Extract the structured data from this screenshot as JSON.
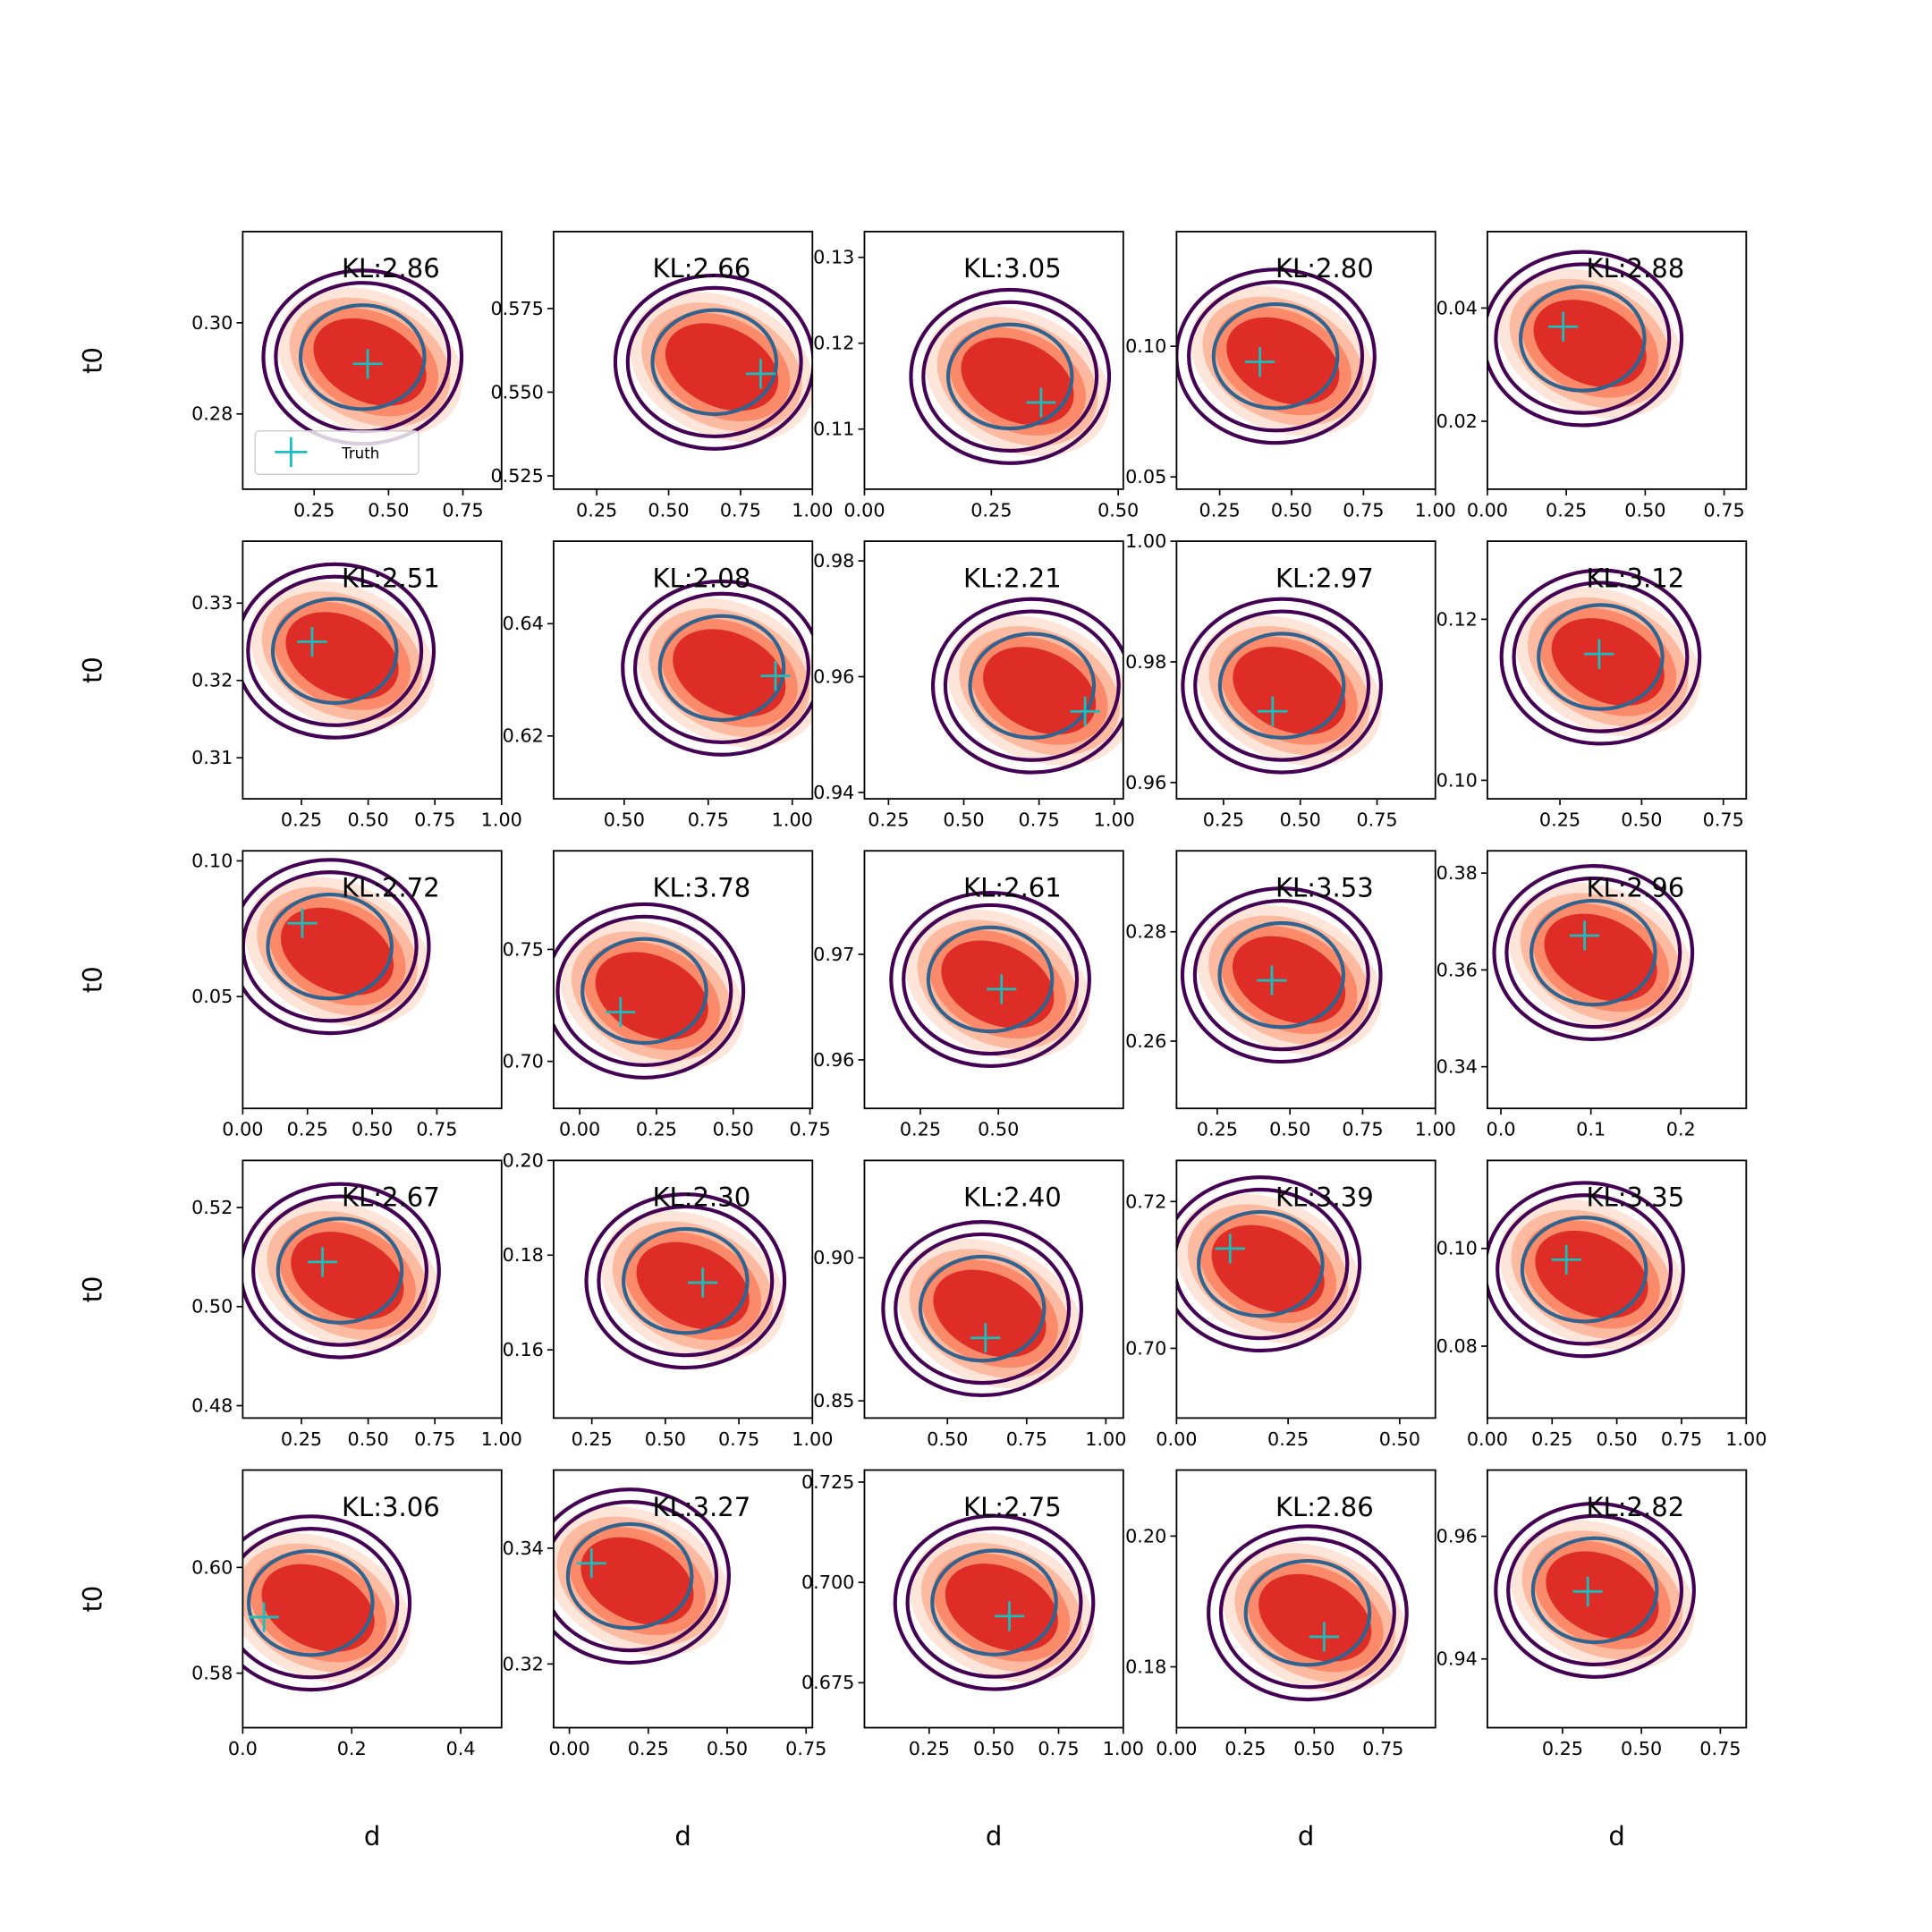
{
  "chart_data": [
    {
      "type": "scatter",
      "title": "KL:2.86",
      "ylabel": "t0",
      "legend": "lower left",
      "xlim": [
        0.01,
        0.88
      ],
      "xticks": [
        0.25,
        {
          "value": 0.5,
          "label": "0.50"
        },
        0.75
      ],
      "ylim": [
        0.2635,
        0.32
      ],
      "yticks": [
        0.28,
        {
          "value": 0.3,
          "label": "0.30"
        }
      ],
      "series": [
        {
          "name": "Truth",
          "color": "#17bfbf",
          "x": [
            0.43
          ],
          "values": [
            0.291
          ]
        }
      ]
    },
    {
      "type": "scatter",
      "title": "KL:2.66",
      "xlim": [
        0.1,
        1.0
      ],
      "xticks": [
        0.25,
        {
          "value": 0.5,
          "label": "0.50"
        },
        0.75,
        {
          "value": 1,
          "label": "1.00"
        }
      ],
      "ylim": [
        0.521,
        0.598
      ],
      "yticks": [
        0.525,
        {
          "value": 0.55,
          "label": "0.550"
        },
        0.575
      ],
      "series": [
        {
          "color": "#17bfbf",
          "x": [
            0.82
          ],
          "values": [
            0.5555
          ]
        }
      ]
    },
    {
      "type": "scatter",
      "title": "KL:3.05",
      "xlim": [
        0,
        0.51
      ],
      "xticks": [
        {
          "value": 0,
          "label": "0.00"
        },
        0.25,
        {
          "value": 0.5,
          "label": "0.50"
        }
      ],
      "ylim": [
        0.103,
        0.133
      ],
      "yticks": [
        0.11,
        0.12,
        0.13
      ],
      "series": [
        {
          "color": "#17bfbf",
          "x": [
            0.348
          ],
          "values": [
            0.1131
          ]
        }
      ]
    },
    {
      "type": "scatter",
      "title": "KL:2.80",
      "xlim": [
        0.1,
        1.0
      ],
      "xticks": [
        0.25,
        {
          "value": 0.5,
          "label": "0.50"
        },
        0.75,
        {
          "value": 1,
          "label": "1.00"
        }
      ],
      "ylim": [
        0.0453,
        0.1439
      ],
      "yticks": [
        0.05,
        {
          "value": 0.1,
          "label": "0.10"
        }
      ],
      "series": [
        {
          "color": "#17bfbf",
          "x": [
            0.39
          ],
          "values": [
            0.094
          ]
        }
      ]
    },
    {
      "type": "scatter",
      "title": "KL:2.88",
      "xlim": [
        0,
        0.82
      ],
      "xticks": [
        {
          "value": 0,
          "label": "0.00"
        },
        0.25,
        {
          "value": 0.5,
          "label": "0.50"
        },
        0.75
      ],
      "ylim": [
        0.008,
        0.0535
      ],
      "yticks": [
        0.02,
        0.04
      ],
      "series": [
        {
          "color": "#17bfbf",
          "x": [
            0.24
          ],
          "values": [
            0.0367
          ]
        }
      ]
    },
    {
      "type": "scatter",
      "title": "KL:2.51",
      "ylabel": "t0",
      "xlim": [
        0.03,
        1.0
      ],
      "xticks": [
        0.25,
        {
          "value": 0.5,
          "label": "0.50"
        },
        0.75,
        {
          "value": 1,
          "label": "1.00"
        }
      ],
      "ylim": [
        0.3047,
        0.338
      ],
      "yticks": [
        0.31,
        0.32,
        0.33
      ],
      "series": [
        {
          "color": "#17bfbf",
          "x": [
            0.29
          ],
          "values": [
            0.325
          ]
        }
      ]
    },
    {
      "type": "scatter",
      "title": "KL:2.08",
      "xlim": [
        0.29,
        1.06
      ],
      "xticks": [
        {
          "value": 0.5,
          "label": "0.50"
        },
        0.75,
        {
          "value": 1,
          "label": "1.00"
        }
      ],
      "ylim": [
        0.6088,
        0.6547
      ],
      "yticks": [
        0.62,
        0.64
      ],
      "series": [
        {
          "color": "#17bfbf",
          "x": [
            0.95
          ],
          "values": [
            0.6307
          ]
        }
      ]
    },
    {
      "type": "scatter",
      "title": "KL:2.21",
      "xlim": [
        0.17,
        1.03
      ],
      "xticks": [
        0.25,
        {
          "value": 0.5,
          "label": "0.50"
        },
        0.75,
        {
          "value": 1,
          "label": "1.00"
        }
      ],
      "ylim": [
        0.9389,
        0.9834
      ],
      "yticks": [
        0.94,
        0.96,
        0.98
      ],
      "series": [
        {
          "color": "#17bfbf",
          "x": [
            0.903
          ],
          "values": [
            0.954
          ]
        }
      ]
    },
    {
      "type": "scatter",
      "title": "KL:2.97",
      "xlim": [
        0.097,
        0.94
      ],
      "xticks": [
        0.25,
        {
          "value": 0.5,
          "label": "0.50"
        },
        0.75
      ],
      "ylim": [
        0.9573,
        1.0
      ],
      "yticks": [
        0.96,
        0.98,
        {
          "value": 1,
          "label": "1.00"
        }
      ],
      "series": [
        {
          "color": "#17bfbf",
          "x": [
            0.41
          ],
          "values": [
            0.9718
          ]
        }
      ]
    },
    {
      "type": "scatter",
      "title": "KL:3.12",
      "xlim": [
        0.028,
        0.82
      ],
      "xticks": [
        0.25,
        {
          "value": 0.5,
          "label": "0.50"
        },
        0.75
      ],
      "ylim": [
        0.0977,
        0.1297
      ],
      "yticks": [
        {
          "value": 0.1,
          "label": "0.10"
        },
        0.12
      ],
      "series": [
        {
          "color": "#17bfbf",
          "x": [
            0.37
          ],
          "values": [
            0.1157
          ]
        }
      ]
    },
    {
      "type": "scatter",
      "title": "KL:2.72",
      "ylabel": "t0",
      "xlim": [
        0,
        1.0
      ],
      "xticks": [
        {
          "value": 0,
          "label": "0.00"
        },
        0.25,
        {
          "value": 0.5,
          "label": "0.50"
        },
        0.75
      ],
      "ylim": [
        0.0088,
        0.1037
      ],
      "yticks": [
        0.05,
        {
          "value": 0.1,
          "label": "0.10"
        }
      ],
      "series": [
        {
          "color": "#17bfbf",
          "x": [
            0.23
          ],
          "values": [
            0.077
          ]
        }
      ]
    },
    {
      "type": "scatter",
      "title": "KL:3.78",
      "xlim": [
        -0.085,
        0.758
      ],
      "xticks": [
        {
          "value": 0,
          "label": "0.00"
        },
        0.25,
        {
          "value": 0.5,
          "label": "0.50"
        },
        0.75
      ],
      "ylim": [
        0.679,
        0.794
      ],
      "yticks": [
        {
          "value": 0.7,
          "label": "0.70"
        },
        0.75
      ],
      "series": [
        {
          "color": "#17bfbf",
          "x": [
            0.133
          ],
          "values": [
            0.722
          ]
        }
      ]
    },
    {
      "type": "scatter",
      "title": "KL:2.61",
      "xlim": [
        0.071,
        0.9
      ],
      "xticks": [
        0.25,
        {
          "value": 0.5,
          "label": "0.50"
        }
      ],
      "ylim": [
        0.9554,
        0.9798
      ],
      "yticks": [
        0.96,
        0.97
      ],
      "series": [
        {
          "color": "#17bfbf",
          "x": [
            0.51
          ],
          "values": [
            0.9667
          ]
        }
      ]
    },
    {
      "type": "scatter",
      "title": "KL:3.53",
      "xlim": [
        0.11,
        1.0
      ],
      "xticks": [
        0.25,
        {
          "value": 0.5,
          "label": "0.50"
        },
        0.75,
        {
          "value": 1,
          "label": "1.00"
        }
      ],
      "ylim": [
        0.2477,
        0.2948
      ],
      "yticks": [
        0.26,
        0.28
      ],
      "series": [
        {
          "color": "#17bfbf",
          "x": [
            0.438
          ],
          "values": [
            0.2711
          ]
        }
      ]
    },
    {
      "type": "scatter",
      "title": "KL:2.96",
      "xlim": [
        -0.015,
        0.2726
      ],
      "xticks": [
        {
          "value": 0,
          "label": "0.0"
        },
        0.1,
        0.2
      ],
      "ylim": [
        0.3314,
        0.3846
      ],
      "yticks": [
        0.34,
        0.36,
        0.38
      ],
      "series": [
        {
          "color": "#17bfbf",
          "x": [
            0.093
          ],
          "values": [
            0.3671
          ]
        }
      ]
    },
    {
      "type": "scatter",
      "title": "KL:2.67",
      "ylabel": "t0",
      "xlim": [
        0.03,
        1.0
      ],
      "xticks": [
        0.25,
        {
          "value": 0.5,
          "label": "0.50"
        },
        0.75,
        {
          "value": 1,
          "label": "1.00"
        }
      ],
      "ylim": [
        0.4775,
        0.5295
      ],
      "yticks": [
        0.48,
        {
          "value": 0.5,
          "label": "0.50"
        },
        0.52
      ],
      "series": [
        {
          "color": "#17bfbf",
          "x": [
            0.329
          ],
          "values": [
            0.509
          ]
        }
      ]
    },
    {
      "type": "scatter",
      "title": "KL:2.30",
      "xlim": [
        0.12,
        1.0
      ],
      "xticks": [
        0.25,
        {
          "value": 0.5,
          "label": "0.50"
        },
        0.75,
        {
          "value": 1,
          "label": "1.00"
        }
      ],
      "ylim": [
        0.1456,
        0.2
      ],
      "yticks": [
        0.16,
        0.18,
        {
          "value": 0.2,
          "label": "0.20"
        }
      ],
      "series": [
        {
          "color": "#17bfbf",
          "x": [
            0.627
          ],
          "values": [
            0.1742
          ]
        }
      ]
    },
    {
      "type": "scatter",
      "title": "KL:2.40",
      "xlim": [
        0.238,
        1.055
      ],
      "xticks": [
        {
          "value": 0.5,
          "label": "0.50"
        },
        0.75,
        {
          "value": 1,
          "label": "1.00"
        }
      ],
      "ylim": [
        0.844,
        0.934
      ],
      "yticks": [
        0.85,
        {
          "value": 0.9,
          "label": "0.90"
        }
      ],
      "series": [
        {
          "color": "#17bfbf",
          "x": [
            0.62
          ],
          "values": [
            0.872
          ]
        }
      ]
    },
    {
      "type": "scatter",
      "title": "KL:3.39",
      "xlim": [
        0,
        0.58
      ],
      "xticks": [
        {
          "value": 0,
          "label": "0.00"
        },
        0.25,
        {
          "value": 0.5,
          "label": "0.50"
        }
      ],
      "ylim": [
        0.6905,
        0.7256
      ],
      "yticks": [
        {
          "value": 0.7,
          "label": "0.70"
        },
        0.72
      ],
      "series": [
        {
          "color": "#17bfbf",
          "x": [
            0.12
          ],
          "values": [
            0.7136
          ]
        }
      ]
    },
    {
      "type": "scatter",
      "title": "KL:3.35",
      "xlim": [
        0,
        1.0
      ],
      "xticks": [
        {
          "value": 0,
          "label": "0.00"
        },
        0.25,
        {
          "value": 0.5,
          "label": "0.50"
        },
        0.75,
        {
          "value": 1,
          "label": "1.00"
        }
      ],
      "ylim": [
        0.0653,
        0.118
      ],
      "yticks": [
        0.08,
        {
          "value": 0.1,
          "label": "0.10"
        }
      ],
      "series": [
        {
          "color": "#17bfbf",
          "x": [
            0.305
          ],
          "values": [
            0.0977
          ]
        }
      ]
    },
    {
      "type": "scatter",
      "title": "KL:3.06",
      "ylabel": "t0",
      "xlabel": "d",
      "xlim": [
        0,
        0.475
      ],
      "xticks": [
        {
          "value": 0,
          "label": "0.0"
        },
        0.2,
        0.4
      ],
      "ylim": [
        0.5697,
        0.6184
      ],
      "yticks": [
        0.58,
        {
          "value": 0.6,
          "label": "0.60"
        }
      ],
      "series": [
        {
          "color": "#17bfbf",
          "x": [
            0.039
          ],
          "values": [
            0.5906
          ]
        }
      ]
    },
    {
      "type": "scatter",
      "title": "KL:3.27",
      "xlabel": "d",
      "xlim": [
        -0.05,
        0.77
      ],
      "xticks": [
        {
          "value": 0,
          "label": "0.00"
        },
        0.25,
        {
          "value": 0.5,
          "label": "0.50"
        },
        0.75
      ],
      "ylim": [
        0.309,
        0.3535
      ],
      "yticks": [
        0.32,
        0.34
      ],
      "series": [
        {
          "color": "#17bfbf",
          "x": [
            0.07
          ],
          "values": [
            0.3374
          ]
        }
      ]
    },
    {
      "type": "scatter",
      "title": "KL:2.75",
      "xlabel": "d",
      "xlim": [
        0,
        1.0
      ],
      "xticks": [
        0.25,
        {
          "value": 0.5,
          "label": "0.50"
        },
        0.75,
        {
          "value": 1,
          "label": "1.00"
        }
      ],
      "ylim": [
        0.6638,
        0.728
      ],
      "yticks": [
        0.675,
        {
          "value": 0.7,
          "label": "0.700"
        },
        0.725
      ],
      "series": [
        {
          "color": "#17bfbf",
          "x": [
            0.56
          ],
          "values": [
            0.6916
          ]
        }
      ]
    },
    {
      "type": "scatter",
      "title": "KL:2.86",
      "xlabel": "d",
      "xlim": [
        0,
        0.94
      ],
      "xticks": [
        {
          "value": 0,
          "label": "0.00"
        },
        0.25,
        {
          "value": 0.5,
          "label": "0.50"
        },
        0.75
      ],
      "ylim": [
        0.1707,
        0.2101
      ],
      "yticks": [
        0.18,
        {
          "value": 0.2,
          "label": "0.20"
        }
      ],
      "series": [
        {
          "color": "#17bfbf",
          "x": [
            0.536
          ],
          "values": [
            0.1846
          ]
        }
      ]
    },
    {
      "type": "scatter",
      "title": "KL:2.82",
      "xlabel": "d",
      "xlim": [
        0.012,
        0.832
      ],
      "xticks": [
        0.25,
        {
          "value": 0.5,
          "label": "0.50"
        },
        0.75
      ],
      "ylim": [
        0.9288,
        0.9708
      ],
      "yticks": [
        0.94,
        0.96
      ],
      "series": [
        {
          "color": "#17bfbf",
          "x": [
            0.33
          ],
          "values": [
            0.951
          ]
        }
      ]
    }
  ]
}
